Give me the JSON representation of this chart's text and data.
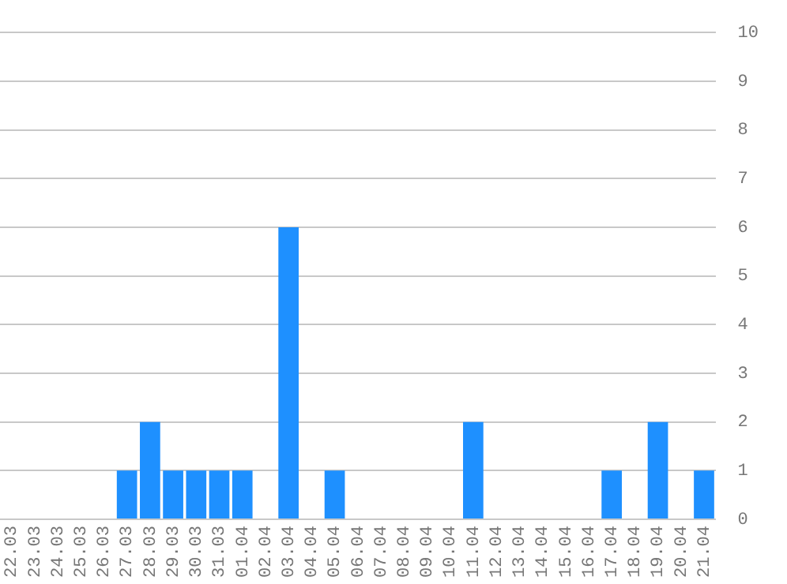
{
  "chart_data": {
    "type": "bar",
    "categories": [
      "22.03",
      "23.03",
      "24.03",
      "25.03",
      "26.03",
      "27.03",
      "28.03",
      "29.03",
      "30.03",
      "31.03",
      "01.04",
      "02.04",
      "03.04",
      "04.04",
      "05.04",
      "06.04",
      "07.04",
      "08.04",
      "09.04",
      "10.04",
      "11.04",
      "12.04",
      "13.04",
      "14.04",
      "15.04",
      "16.04",
      "17.04",
      "18.04",
      "19.04",
      "20.04",
      "21.04"
    ],
    "values": [
      0,
      0,
      0,
      0,
      0,
      1,
      2,
      1,
      1,
      1,
      1,
      0,
      6,
      0,
      1,
      0,
      0,
      0,
      0,
      0,
      2,
      0,
      0,
      0,
      0,
      0,
      1,
      0,
      2,
      0,
      1
    ],
    "color": "#1e90ff",
    "ylim": [
      0,
      10
    ],
    "yticks": [
      0,
      1,
      2,
      3,
      4,
      5,
      6,
      7,
      8,
      9,
      10
    ],
    "grid": "y",
    "legend": false
  }
}
